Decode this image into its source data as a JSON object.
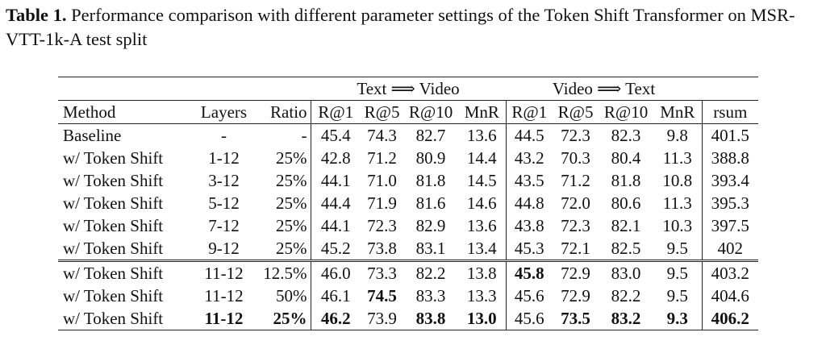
{
  "caption": {
    "label": "Table 1.",
    "text": "Performance comparison with different parameter settings of the Token Shift Transformer on MSR-VTT-1k-A test split"
  },
  "table": {
    "group_headers": [
      "Text ⟹ Video",
      "Video ⟹ Text"
    ],
    "columns": [
      "Method",
      "Layers",
      "Ratio",
      "R@1",
      "R@5",
      "R@10",
      "MnR",
      "R@1",
      "R@5",
      "R@10",
      "MnR",
      "rsum"
    ],
    "rows": [
      [
        "Baseline",
        "-",
        "-",
        "45.4",
        "74.3",
        "82.7",
        "13.6",
        "44.5",
        "72.3",
        "82.3",
        "9.8",
        "401.5"
      ],
      [
        "w/ Token Shift",
        "1-12",
        "25%",
        "42.8",
        "71.2",
        "80.9",
        "14.4",
        "43.2",
        "70.3",
        "80.4",
        "11.3",
        "388.8"
      ],
      [
        "w/ Token Shift",
        "3-12",
        "25%",
        "44.1",
        "71.0",
        "81.8",
        "14.5",
        "43.5",
        "71.2",
        "81.8",
        "10.8",
        "393.4"
      ],
      [
        "w/ Token Shift",
        "5-12",
        "25%",
        "44.4",
        "71.9",
        "81.6",
        "14.6",
        "44.8",
        "72.0",
        "80.6",
        "11.3",
        "395.3"
      ],
      [
        "w/ Token Shift",
        "7-12",
        "25%",
        "44.1",
        "72.3",
        "82.9",
        "13.6",
        "43.8",
        "72.3",
        "82.1",
        "10.3",
        "397.5"
      ],
      [
        "w/ Token Shift",
        "9-12",
        "25%",
        "45.2",
        "73.8",
        "83.1",
        "13.4",
        "45.3",
        "72.1",
        "82.5",
        "9.5",
        "402"
      ],
      [
        "w/ Token Shift",
        "11-12",
        "12.5%",
        "46.0",
        "73.3",
        "82.2",
        "13.8",
        "45.8",
        "72.9",
        "83.0",
        "9.5",
        "403.2"
      ],
      [
        "w/ Token Shift",
        "11-12",
        "50%",
        "46.1",
        "74.5",
        "83.3",
        "13.3",
        "45.6",
        "72.9",
        "82.2",
        "9.5",
        "404.6"
      ],
      [
        "w/ Token Shift",
        "11-12",
        "25%",
        "46.2",
        "73.9",
        "83.8",
        "13.0",
        "45.6",
        "73.5",
        "83.2",
        "9.3",
        "406.2"
      ]
    ],
    "bold_cells": [
      [
        6,
        7
      ],
      [
        7,
        4
      ],
      [
        8,
        1
      ],
      [
        8,
        2
      ],
      [
        8,
        3
      ],
      [
        8,
        5
      ],
      [
        8,
        6
      ],
      [
        8,
        8
      ],
      [
        8,
        9
      ],
      [
        8,
        10
      ],
      [
        8,
        11
      ]
    ]
  }
}
